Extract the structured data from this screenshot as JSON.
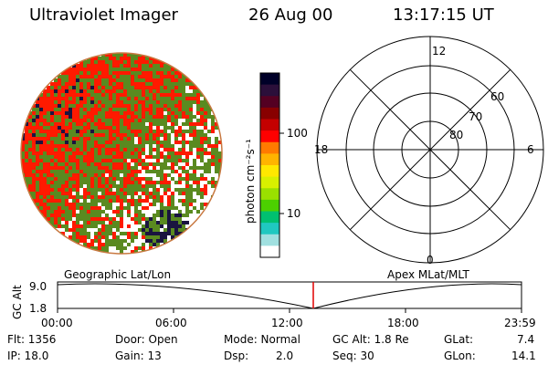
{
  "header": {
    "title": "Ultraviolet Imager",
    "date": "26 Aug 00",
    "time": "13:17:15 UT"
  },
  "colorbar": {
    "unit_label": "photon cm⁻²s⁻¹",
    "tick_labels": [
      "100",
      "10"
    ],
    "colors": [
      "#000028",
      "#2b0f3a",
      "#540022",
      "#880000",
      "#c40000",
      "#ff0000",
      "#ff7a00",
      "#ffb400",
      "#ffe800",
      "#d8f000",
      "#9ae000",
      "#4cd000",
      "#00c070",
      "#20c8c0",
      "#a0e0e0",
      "#ffffff"
    ]
  },
  "polar_plot": {
    "hour_labels": [
      "12",
      "18",
      "6",
      "0"
    ],
    "lat_labels": [
      "60",
      "70",
      "80"
    ]
  },
  "timeline": {
    "left_label": "Geographic Lat/Lon",
    "right_label": "Apex MLat/MLT",
    "axis_label": "GC Alt",
    "y_ticks": [
      "9.0",
      "1.8"
    ],
    "x_ticks": [
      "00:00",
      "06:00",
      "12:00",
      "18:00",
      "23:59"
    ],
    "current_time_marker": "13:17",
    "marker_color": "#e00000"
  },
  "info": {
    "flt": "Flt: 1356",
    "ip": "IP: 18.0",
    "door": "Door: Open",
    "gain": "Gain: 13",
    "mode": "Mode: Normal",
    "dsp_label": "Dsp:",
    "dsp_value": "2.0",
    "gc_alt": "GC Alt: 1.8 Re",
    "seq": "Seq: 30",
    "glat_label": "GLat:",
    "glat_value": "7.4",
    "glon_label": "GLon:",
    "glon_value": "14.1"
  },
  "image_colors": {
    "rim": "#c87840",
    "red": "#ff1a00",
    "green": "#5a8a20",
    "dark": "#1a1440"
  }
}
